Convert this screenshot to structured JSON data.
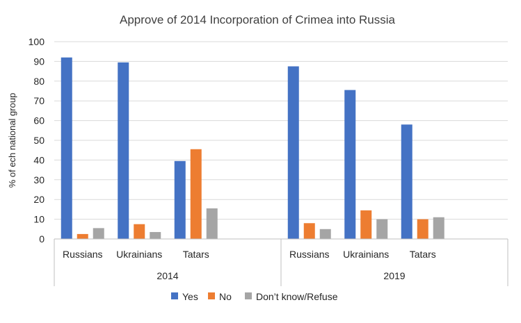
{
  "chart_data": {
    "type": "bar",
    "title": "Approve of 2014 Incorporation of Crimea into Russia",
    "ylabel": "% of ech national group",
    "xlabel": "",
    "ylim": [
      0,
      100
    ],
    "yticks": [
      0,
      10,
      20,
      30,
      40,
      50,
      60,
      70,
      80,
      90,
      100
    ],
    "grid": true,
    "legend_position": "bottom",
    "groups": [
      {
        "label": "2014",
        "categories": [
          "Russians",
          "Ukrainians",
          "Tatars"
        ],
        "series": [
          {
            "name": "Yes",
            "values": [
              92,
              89.5,
              39.5
            ]
          },
          {
            "name": "No",
            "values": [
              2.5,
              7.5,
              45.5
            ]
          },
          {
            "name": "Don’t know/Refuse",
            "values": [
              5.5,
              3.5,
              15.5
            ]
          }
        ]
      },
      {
        "label": "2019",
        "categories": [
          "Russians",
          "Ukrainians",
          "Tatars"
        ],
        "series": [
          {
            "name": "Yes",
            "values": [
              87.5,
              75.5,
              58
            ]
          },
          {
            "name": "No",
            "values": [
              8,
              14.5,
              10
            ]
          },
          {
            "name": "Don’t know/Refuse",
            "values": [
              5,
              10,
              11
            ]
          }
        ]
      }
    ],
    "colors": {
      "Yes": "#4472C4",
      "No": "#ED7D31",
      "Don’t know/Refuse": "#A5A5A5"
    }
  }
}
